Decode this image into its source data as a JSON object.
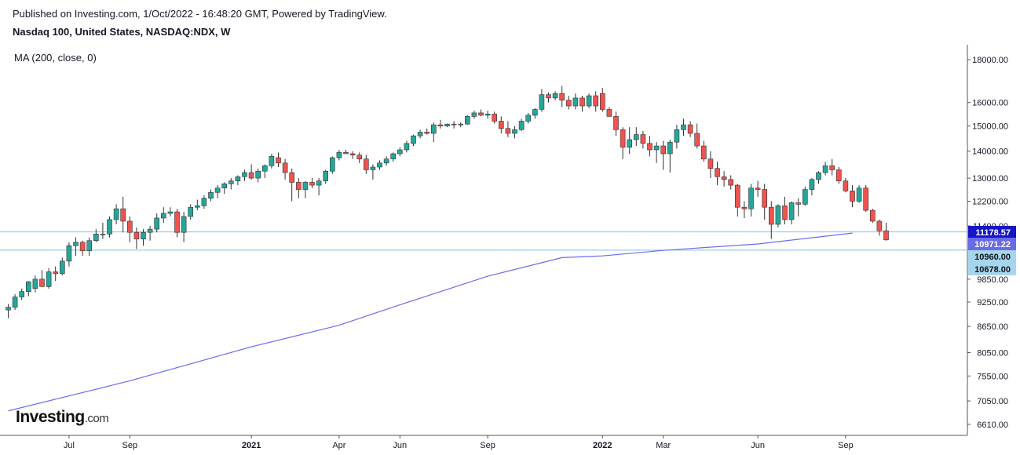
{
  "header": {
    "published": "Published on Investing.com, 1/Oct/2022 - 16:48:20 GMT, Powered by TradingView.",
    "title": "Nasdaq 100, United States, NASDAQ:NDX, W"
  },
  "indicator_label": "MA (200, close, 0)",
  "logo": {
    "main": "Investing",
    "sub": ".com"
  },
  "colors": {
    "up": "#26a69a",
    "down": "#ef5350",
    "ma": "#6b6bf0",
    "hline": "#86bfe6",
    "last_price_bg": "#1414c8",
    "ma_label_bg": "#6a6ae6",
    "level_bg": "#a6d6ee"
  },
  "chart_data": {
    "type": "candlestick",
    "title": "Nasdaq 100, United States, NASDAQ:NDX, W",
    "interval": "W",
    "y_scale": "log",
    "ylim": [
      6400,
      18600
    ],
    "y_ticks": [
      18000,
      16000,
      15000,
      14000,
      13000,
      12200,
      11400,
      9850,
      9250,
      8650,
      8050,
      7550,
      7050,
      6610
    ],
    "x_ticks": [
      {
        "label": "Jul",
        "i": 9
      },
      {
        "label": "Sep",
        "i": 18
      },
      {
        "label": "2021",
        "i": 36,
        "bold": true
      },
      {
        "label": "Apr",
        "i": 49
      },
      {
        "label": "Jun",
        "i": 58
      },
      {
        "label": "Sep",
        "i": 71
      },
      {
        "label": "2022",
        "i": 88,
        "bold": true
      },
      {
        "label": "Mar",
        "i": 97
      },
      {
        "label": "Jun",
        "i": 111
      },
      {
        "label": "Sep",
        "i": 124
      }
    ],
    "series": [
      {
        "name": "NDX",
        "ohlc": [
          [
            9050,
            9200,
            8850,
            9120
          ],
          [
            9120,
            9450,
            9050,
            9380
          ],
          [
            9380,
            9600,
            9300,
            9520
          ],
          [
            9520,
            9800,
            9400,
            9780
          ],
          [
            9600,
            9950,
            9500,
            9850
          ],
          [
            9850,
            10100,
            9700,
            9650
          ],
          [
            9650,
            10150,
            9600,
            10050
          ],
          [
            10050,
            10200,
            9800,
            10000
          ],
          [
            10000,
            10450,
            9950,
            10350
          ],
          [
            10350,
            10900,
            10200,
            10800
          ],
          [
            10800,
            11050,
            10500,
            10900
          ],
          [
            10900,
            10950,
            10500,
            10650
          ],
          [
            10650,
            11050,
            10500,
            10950
          ],
          [
            10950,
            11300,
            10900,
            11150
          ],
          [
            11150,
            11500,
            11000,
            11150
          ],
          [
            11150,
            11700,
            11050,
            11600
          ],
          [
            11600,
            12100,
            11450,
            11950
          ],
          [
            11950,
            12350,
            11200,
            11550
          ],
          [
            11550,
            11700,
            10900,
            11200
          ],
          [
            11200,
            11350,
            10700,
            11000
          ],
          [
            11000,
            11300,
            10800,
            11200
          ],
          [
            11200,
            11400,
            10950,
            11300
          ],
          [
            11300,
            11800,
            11200,
            11650
          ],
          [
            11650,
            12000,
            11500,
            11800
          ],
          [
            11800,
            12000,
            11700,
            11850
          ],
          [
            11850,
            11950,
            11050,
            11200
          ],
          [
            11200,
            11850,
            10900,
            11700
          ],
          [
            11700,
            12100,
            11600,
            12000
          ],
          [
            12000,
            12250,
            11900,
            12050
          ],
          [
            12050,
            12400,
            11950,
            12300
          ],
          [
            12300,
            12600,
            12200,
            12500
          ],
          [
            12500,
            12750,
            12300,
            12650
          ],
          [
            12650,
            12850,
            12450,
            12800
          ],
          [
            12800,
            13000,
            12600,
            12900
          ],
          [
            12900,
            13100,
            12750,
            13050
          ],
          [
            13050,
            13300,
            12900,
            13200
          ],
          [
            13200,
            13500,
            12950,
            13000
          ],
          [
            13000,
            13350,
            12850,
            13250
          ],
          [
            13250,
            13500,
            13000,
            13450
          ],
          [
            13450,
            13900,
            13350,
            13800
          ],
          [
            13750,
            13950,
            13400,
            13550
          ],
          [
            13550,
            13700,
            12950,
            13200
          ],
          [
            13200,
            13350,
            12200,
            12850
          ],
          [
            12850,
            13000,
            12300,
            12600
          ],
          [
            12600,
            12900,
            12300,
            12850
          ],
          [
            12850,
            13000,
            12650,
            12750
          ],
          [
            12750,
            13000,
            12400,
            12900
          ],
          [
            12900,
            13300,
            12800,
            13250
          ],
          [
            13250,
            13800,
            13150,
            13750
          ],
          [
            13750,
            14050,
            13650,
            13950
          ],
          [
            13950,
            14050,
            13900,
            13900
          ],
          [
            13900,
            14000,
            13700,
            13850
          ],
          [
            13850,
            13950,
            13550,
            13700
          ],
          [
            13700,
            13850,
            13150,
            13300
          ],
          [
            13300,
            13500,
            12950,
            13400
          ],
          [
            13400,
            13650,
            13300,
            13550
          ],
          [
            13550,
            13800,
            13450,
            13700
          ],
          [
            13700,
            13950,
            13600,
            13900
          ],
          [
            13900,
            14150,
            13800,
            14050
          ],
          [
            14050,
            14400,
            13950,
            14300
          ],
          [
            14300,
            14650,
            14200,
            14600
          ],
          [
            14600,
            14850,
            14500,
            14750
          ],
          [
            14750,
            14900,
            14650,
            14700
          ],
          [
            14700,
            15150,
            14350,
            15050
          ],
          [
            15050,
            15250,
            14900,
            15000
          ],
          [
            15000,
            15100,
            14950,
            15080
          ],
          [
            15080,
            15200,
            14900,
            15050
          ],
          [
            15050,
            15150,
            14950,
            15080
          ],
          [
            15080,
            15450,
            15050,
            15400
          ],
          [
            15400,
            15650,
            15300,
            15550
          ],
          [
            15550,
            15700,
            15400,
            15450
          ],
          [
            15450,
            15650,
            15300,
            15500
          ],
          [
            15500,
            15600,
            15100,
            15200
          ],
          [
            15200,
            15400,
            14700,
            14900
          ],
          [
            14900,
            15200,
            14550,
            14700
          ],
          [
            14700,
            15000,
            14500,
            14850
          ],
          [
            14850,
            15300,
            14800,
            15200
          ],
          [
            15200,
            15550,
            15100,
            15450
          ],
          [
            15450,
            15750,
            15300,
            15700
          ],
          [
            15700,
            16600,
            15600,
            16350
          ],
          [
            16350,
            16450,
            16000,
            16200
          ],
          [
            16200,
            16500,
            16100,
            16400
          ],
          [
            16400,
            16750,
            15800,
            16100
          ],
          [
            16100,
            16300,
            15700,
            15850
          ],
          [
            15850,
            16400,
            15700,
            16200
          ],
          [
            16200,
            16300,
            15600,
            15850
          ],
          [
            15850,
            16400,
            15750,
            16300
          ],
          [
            16300,
            16500,
            15600,
            15850
          ],
          [
            16400,
            16650,
            15600,
            15700
          ],
          [
            15700,
            15800,
            15400,
            15400
          ],
          [
            15400,
            15600,
            14600,
            14850
          ],
          [
            14850,
            14950,
            13700,
            14150
          ],
          [
            14150,
            14950,
            13900,
            14450
          ],
          [
            14450,
            14950,
            14200,
            14650
          ],
          [
            14650,
            14800,
            14100,
            14300
          ],
          [
            14300,
            14600,
            13800,
            14050
          ],
          [
            14050,
            14350,
            13550,
            14200
          ],
          [
            14200,
            14400,
            13300,
            13900
          ],
          [
            13900,
            14450,
            13200,
            14350
          ],
          [
            14350,
            15050,
            14100,
            14850
          ],
          [
            14850,
            15300,
            14600,
            15050
          ],
          [
            15050,
            15200,
            14550,
            14700
          ],
          [
            14700,
            15100,
            14100,
            14200
          ],
          [
            14200,
            14400,
            13600,
            13700
          ],
          [
            13700,
            14000,
            13000,
            13350
          ],
          [
            13350,
            13600,
            12750,
            13050
          ],
          [
            13050,
            13250,
            12700,
            12950
          ],
          [
            12950,
            13100,
            12600,
            12750
          ],
          [
            12750,
            12800,
            11700,
            12000
          ],
          [
            12000,
            12200,
            11650,
            11950
          ],
          [
            11950,
            12800,
            11700,
            12650
          ],
          [
            12650,
            12900,
            12350,
            12600
          ],
          [
            12600,
            12800,
            11600,
            12000
          ],
          [
            12000,
            12200,
            11000,
            11450
          ],
          [
            11450,
            12100,
            11350,
            12050
          ],
          [
            12050,
            12350,
            11450,
            11600
          ],
          [
            11600,
            12200,
            11450,
            12150
          ],
          [
            12150,
            12300,
            11700,
            12100
          ],
          [
            12100,
            12700,
            12050,
            12600
          ],
          [
            12600,
            13000,
            12400,
            12950
          ],
          [
            12950,
            13250,
            12800,
            13200
          ],
          [
            13200,
            13600,
            13100,
            13450
          ],
          [
            13450,
            13700,
            13100,
            13300
          ],
          [
            13300,
            13400,
            12800,
            12900
          ],
          [
            12900,
            13000,
            12500,
            12550
          ],
          [
            12550,
            12750,
            12000,
            12200
          ],
          [
            12200,
            12750,
            12150,
            12650
          ],
          [
            12650,
            12750,
            11850,
            11900
          ],
          [
            11900,
            11950,
            11500,
            11550
          ],
          [
            11550,
            11600,
            11100,
            11250
          ],
          [
            11250,
            11500,
            10950,
            10971.22
          ]
        ]
      },
      {
        "name": "MA (200, close, 0)",
        "points": [
          [
            0,
            6860
          ],
          [
            18,
            7450
          ],
          [
            36,
            8180
          ],
          [
            49,
            8680
          ],
          [
            58,
            9180
          ],
          [
            71,
            9930
          ],
          [
            82,
            10450
          ],
          [
            88,
            10500
          ],
          [
            97,
            10660
          ],
          [
            111,
            10850
          ],
          [
            125,
            11178.57
          ]
        ]
      }
    ],
    "last_price": "10971.22",
    "ma_value": "11178.57",
    "horizontal_levels": [
      "10960.00",
      "10678.00"
    ],
    "axis_labels_shown": [
      "11178.57",
      "10971.22",
      "10960.00",
      "10678.00"
    ]
  }
}
